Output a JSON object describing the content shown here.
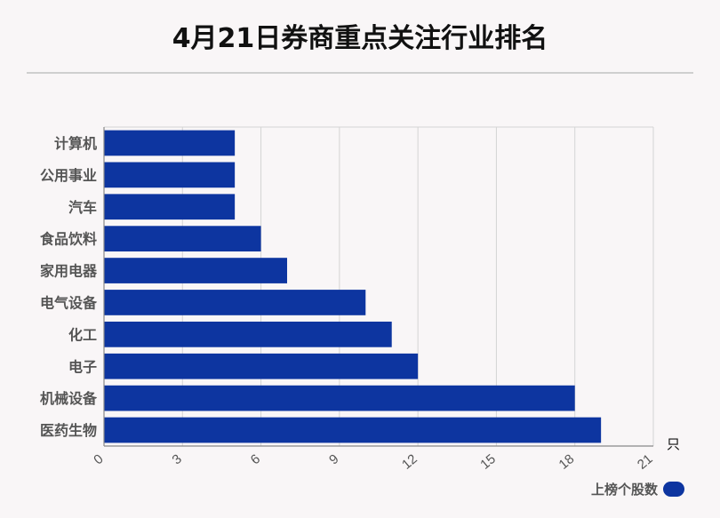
{
  "title": "4月21日券商重点关注行业排名",
  "colors": {
    "bar": "#0d35a0",
    "grid": "#d4d4d4",
    "axis": "#888888",
    "label": "#555555",
    "background": "#f9f6f7"
  },
  "chart_data": {
    "type": "bar",
    "orientation": "horizontal",
    "title": "4月21日券商重点关注行业排名",
    "categories": [
      "计算机",
      "公用事业",
      "汽车",
      "食品饮料",
      "家用电器",
      "电气设备",
      "化工",
      "电子",
      "机械设备",
      "医药生物"
    ],
    "series": [
      {
        "name": "上榜个股数",
        "values": [
          5,
          5,
          5,
          6,
          7,
          10,
          11,
          12,
          18,
          19
        ]
      }
    ],
    "xlim": [
      0,
      21
    ],
    "xticks": [
      "0",
      "3",
      "6",
      "9",
      "12",
      "15",
      "18",
      "21"
    ],
    "xunit": "只",
    "grid": true,
    "legend": "bottom-right"
  },
  "legend": {
    "label": "上榜个股数"
  }
}
